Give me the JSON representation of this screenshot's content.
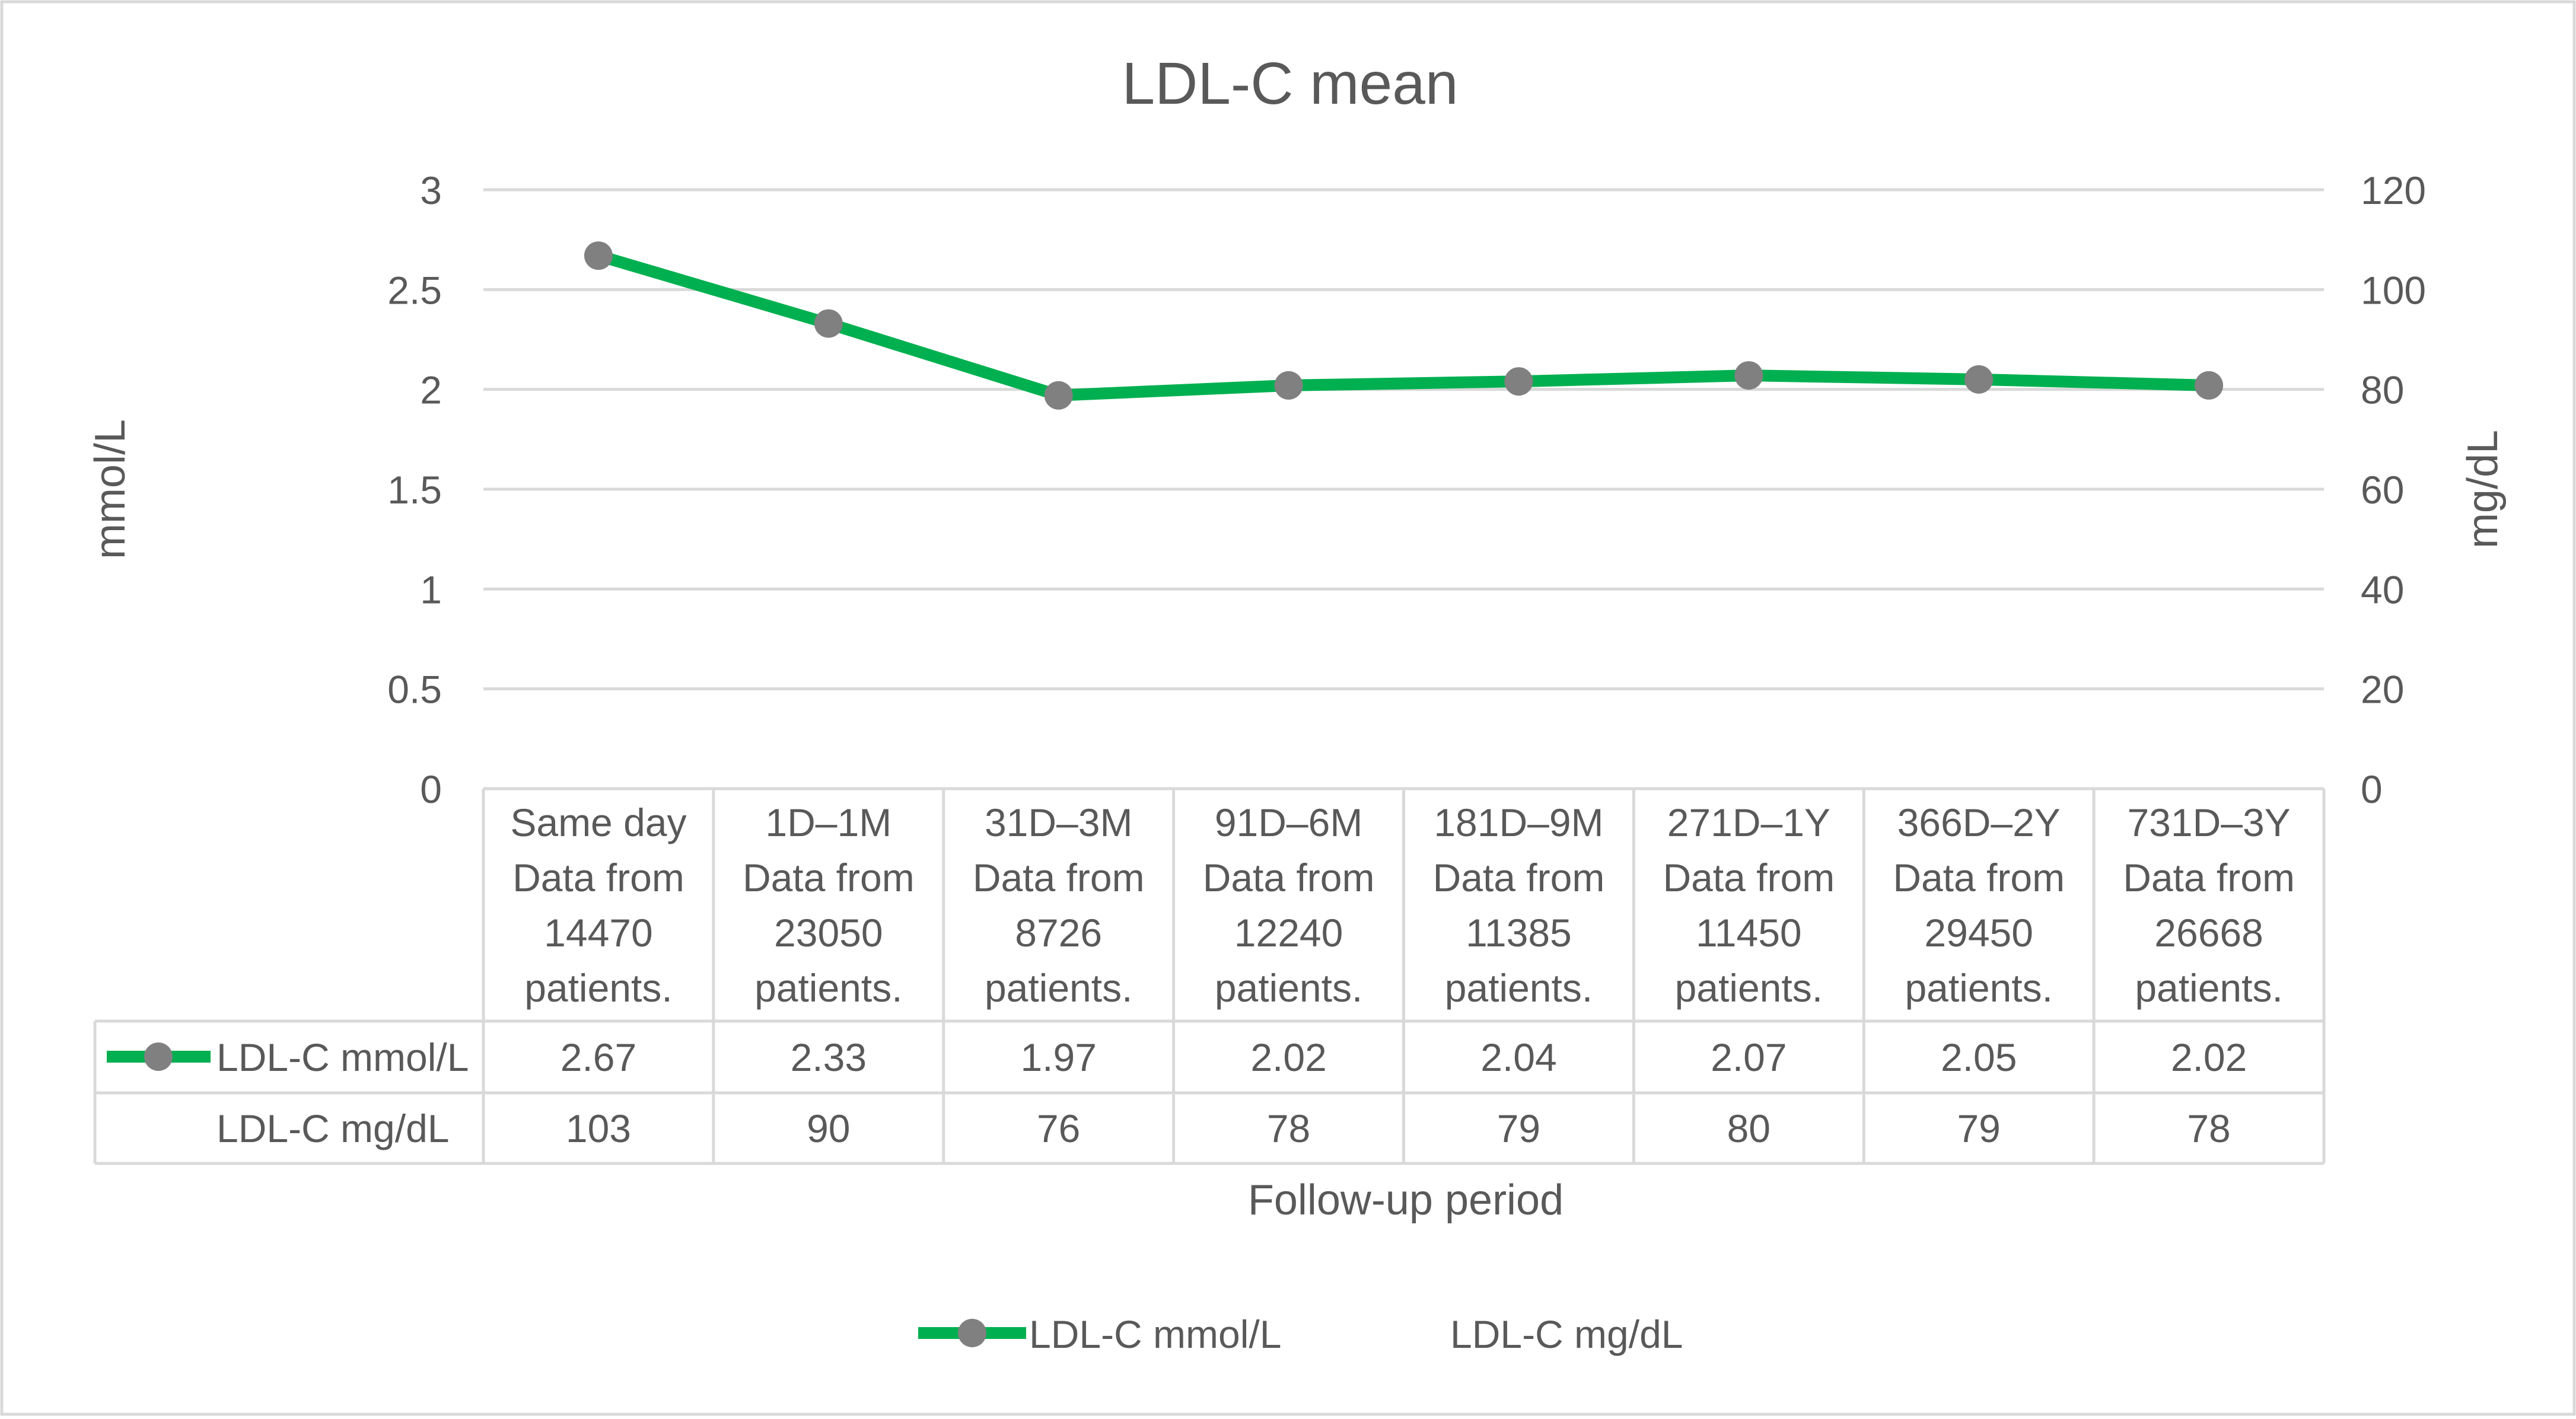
{
  "chart_data": {
    "type": "line",
    "title": "LDL-C mean",
    "xlabel": "Follow-up period",
    "ylabel": "mmol/L",
    "y2label": "mg/dL",
    "ylim": [
      0,
      3
    ],
    "y2lim": [
      0,
      120
    ],
    "yticks": [
      "0",
      "0.5",
      "1",
      "1.5",
      "2",
      "2.5",
      "3"
    ],
    "y2ticks": [
      "0",
      "20",
      "40",
      "60",
      "80",
      "100",
      "120"
    ],
    "grid": true,
    "categories": [
      [
        "Same day",
        "Data from",
        "14470",
        "patients."
      ],
      [
        "1D–1M",
        "Data from",
        "23050",
        "patients."
      ],
      [
        "31D–3M",
        "Data from",
        "8726",
        "patients."
      ],
      [
        "91D–6M",
        "Data from",
        "12240",
        "patients."
      ],
      [
        "181D–9M",
        "Data from",
        "11385",
        "patients."
      ],
      [
        "271D–1Y",
        "Data from",
        "11450",
        "patients."
      ],
      [
        "366D–2Y",
        "Data from",
        "29450",
        "patients."
      ],
      [
        "731D–3Y",
        "Data from",
        "26668",
        "patients."
      ]
    ],
    "series": [
      {
        "name": "LDL-C mmol/L",
        "axis": "left",
        "plotted": true,
        "color": "#00B050",
        "marker_color": "#808080",
        "values": [
          2.67,
          2.33,
          1.97,
          2.02,
          2.04,
          2.07,
          2.05,
          2.02
        ],
        "table_labels": [
          "2.67",
          "2.33",
          "1.97",
          "2.02",
          "2.04",
          "2.07",
          "2.05",
          "2.02"
        ]
      },
      {
        "name": "LDL-C mg/dL",
        "axis": "right",
        "plotted": false,
        "values": [
          103,
          90,
          76,
          78,
          79,
          80,
          79,
          78
        ],
        "table_labels": [
          "103",
          "90",
          "76",
          "78",
          "79",
          "80",
          "79",
          "78"
        ]
      }
    ],
    "legend": {
      "position": "bottom",
      "items": [
        "LDL-C mmol/L",
        "LDL-C mg/dL"
      ]
    },
    "colors": {
      "text": "#595959",
      "grid": "#D9D9D9",
      "line": "#00B050",
      "marker": "#808080"
    }
  }
}
